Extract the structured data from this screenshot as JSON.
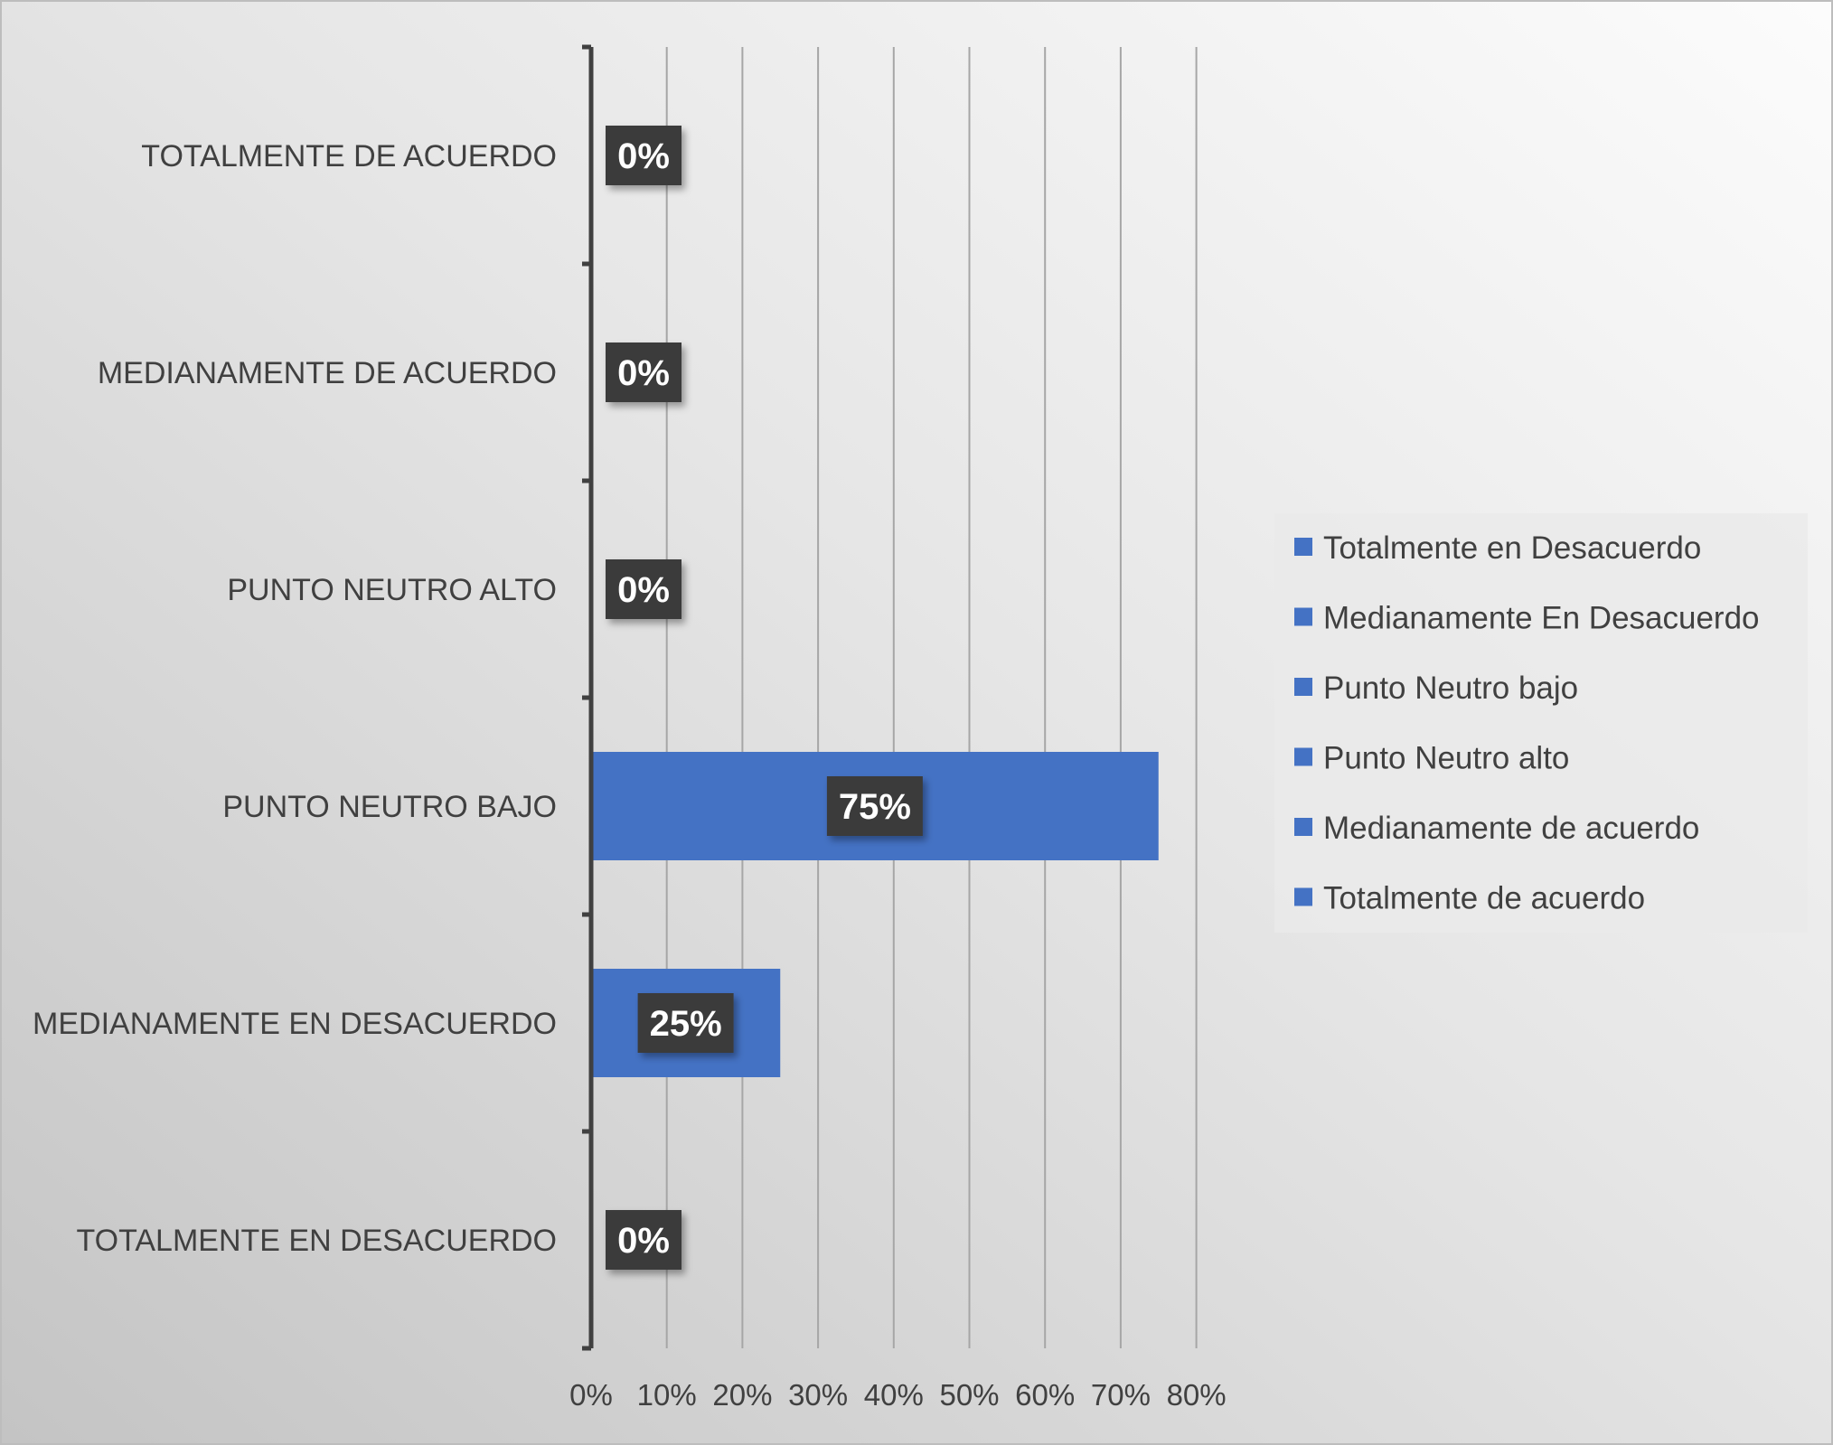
{
  "colors": {
    "bar": "#4472C4",
    "label_box": "#3a3a3a",
    "label_text": "#ffffff",
    "axis": "#404040",
    "grid": "#a6a6a6",
    "text": "#404040",
    "legend_bg": "#eaeaea"
  },
  "chart_data": {
    "type": "bar",
    "orientation": "horizontal",
    "categories": [
      "TOTALMENTE DE  ACUERDO",
      "MEDIANAMENTE DE ACUERDO",
      "PUNTO NEUTRO ALTO",
      "PUNTO NEUTRO BAJO",
      "MEDIANAMENTE EN DESACUERDO",
      "TOTALMENTE EN DESACUERDO"
    ],
    "values": [
      0,
      0,
      0,
      75,
      25,
      0
    ],
    "value_labels": [
      "0%",
      "0%",
      "0%",
      "75%",
      "25%",
      "0%"
    ],
    "xlim": [
      0,
      80
    ],
    "xticks": [
      0,
      10,
      20,
      30,
      40,
      50,
      60,
      70,
      80
    ],
    "xtick_labels": [
      "0%",
      "10%",
      "20%",
      "30%",
      "40%",
      "50%",
      "60%",
      "70%",
      "80%"
    ],
    "grid": true,
    "legend_position": "right",
    "legend": [
      "Totalmente en Desacuerdo",
      "Medianamente En Desacuerdo",
      "Punto Neutro bajo",
      "Punto Neutro alto",
      "Medianamente de acuerdo",
      "Totalmente de  acuerdo"
    ]
  }
}
